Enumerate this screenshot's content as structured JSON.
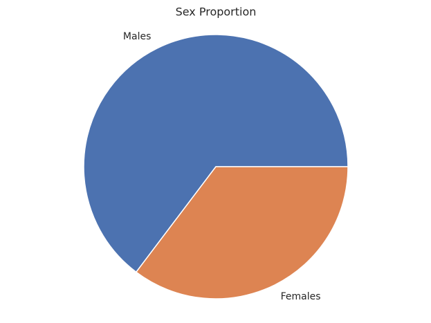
{
  "chart_data": {
    "type": "pie",
    "title": "Sex Proportion",
    "categories": [
      "Males",
      "Females"
    ],
    "values": [
      64.7,
      35.3
    ],
    "colors": [
      "#4c72b0",
      "#dd8452"
    ]
  }
}
